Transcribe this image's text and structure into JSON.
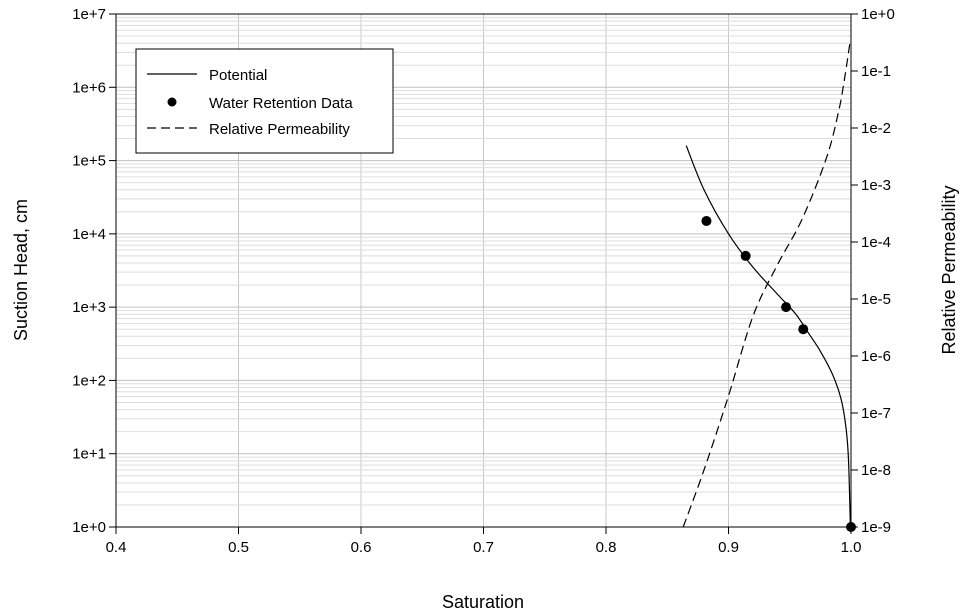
{
  "chart_data": {
    "type": "line",
    "title": "",
    "xlabel": "Saturation",
    "ylabel": "Suction Head, cm",
    "y2label": "Relative Permeability",
    "xlim": [
      0.4,
      1.0
    ],
    "ylim": [
      1,
      10000000
    ],
    "y2lim": [
      1e-09,
      1
    ],
    "yscale": "log",
    "y2scale": "log",
    "grid": true,
    "legend_position": "top-left",
    "x_tick_labels": [
      "0.4",
      "0.5",
      "0.6",
      "0.7",
      "0.8",
      "0.9",
      "1.0"
    ],
    "y_tick_labels": [
      "1e+0",
      "1e+1",
      "1e+2",
      "1e+3",
      "1e+4",
      "1e+5",
      "1e+6",
      "1e+7"
    ],
    "y2_tick_labels": [
      "1e-9",
      "1e-8",
      "1e-7",
      "1e-6",
      "1e-5",
      "1e-4",
      "1e-3",
      "1e-2",
      "1e-1",
      "1e+0"
    ],
    "series": [
      {
        "name": "Potential",
        "axis": "left",
        "style": "solid-line",
        "x": [
          0.8655,
          0.88,
          0.9,
          0.92,
          0.94,
          0.955,
          0.965,
          0.975,
          0.985,
          0.992,
          0.996,
          0.998,
          0.9995
        ],
        "y": [
          160000,
          40000,
          10000,
          3500,
          1500,
          800,
          450,
          250,
          120,
          55,
          22,
          8,
          1
        ]
      },
      {
        "name": "Water Retention Data",
        "axis": "left",
        "style": "marker",
        "x": [
          0.882,
          0.914,
          0.947,
          0.961,
          1.0
        ],
        "y": [
          15000,
          5000,
          1000,
          500,
          1
        ]
      },
      {
        "name": "Relative Permeability",
        "axis": "right",
        "style": "dashed-line",
        "x": [
          0.863,
          0.88,
          0.9,
          0.92,
          0.94,
          0.96,
          0.98,
          0.99,
          0.995,
          0.999
        ],
        "y": [
          1e-09,
          1e-08,
          2e-07,
          5e-06,
          4e-05,
          0.00025,
          0.003,
          0.02,
          0.08,
          0.3
        ]
      }
    ]
  }
}
